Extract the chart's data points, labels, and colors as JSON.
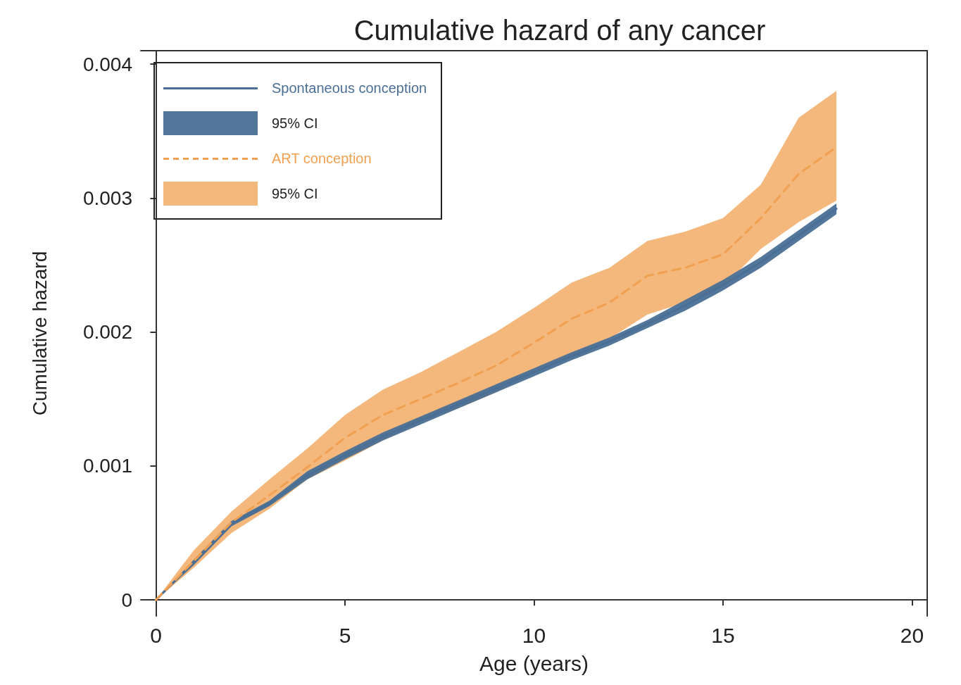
{
  "chart_data": {
    "type": "line",
    "title": "Cumulative hazard of any cancer",
    "xlabel": "Age (years)",
    "ylabel": "Cumulative hazard",
    "x": [
      0,
      1,
      2,
      3,
      4,
      5,
      6,
      7,
      8,
      9,
      10,
      11,
      12,
      13,
      14,
      15,
      16,
      17,
      18
    ],
    "series": [
      {
        "name": "Spontaneous conception",
        "color": "#4a6f96",
        "line_style": "solid",
        "values": [
          0,
          0.00028,
          0.00057,
          0.00072,
          0.00093,
          0.00108,
          0.00122,
          0.00134,
          0.00146,
          0.00158,
          0.0017,
          0.00182,
          0.00193,
          0.00206,
          0.0022,
          0.00235,
          0.00252,
          0.00272,
          0.00292
        ],
        "lower": [
          0,
          0.00026,
          0.00055,
          0.0007,
          0.0009,
          0.00105,
          0.00119,
          0.00131,
          0.00143,
          0.00155,
          0.00167,
          0.00179,
          0.0019,
          0.00203,
          0.00216,
          0.00231,
          0.00248,
          0.00268,
          0.00288
        ],
        "upper": [
          0,
          0.0003,
          0.00059,
          0.00074,
          0.00096,
          0.00111,
          0.00125,
          0.00137,
          0.00149,
          0.00161,
          0.00173,
          0.00185,
          0.00196,
          0.00209,
          0.00224,
          0.00239,
          0.00256,
          0.00276,
          0.00296
        ]
      },
      {
        "name": "ART conception",
        "color": "#f0a050",
        "line_style": "dashed",
        "values": [
          0,
          0.00029,
          0.00058,
          0.00078,
          0.00099,
          0.00121,
          0.00138,
          0.0015,
          0.00162,
          0.00175,
          0.00192,
          0.0021,
          0.00222,
          0.00242,
          0.00248,
          0.00258,
          0.00285,
          0.00318,
          0.00338
        ],
        "lower": [
          0,
          0.00024,
          0.0005,
          0.00068,
          0.0009,
          0.00104,
          0.00119,
          0.00133,
          0.00143,
          0.00155,
          0.0017,
          0.00182,
          0.00195,
          0.00213,
          0.00222,
          0.00234,
          0.00262,
          0.00282,
          0.00298
        ],
        "upper": [
          0,
          0.00037,
          0.00066,
          0.0009,
          0.00113,
          0.00138,
          0.00157,
          0.0017,
          0.00185,
          0.002,
          0.00218,
          0.00237,
          0.00248,
          0.00268,
          0.00275,
          0.00285,
          0.0031,
          0.0036,
          0.0038
        ]
      }
    ],
    "annotations": [
      "95% CI",
      "95% CI"
    ],
    "xlim": [
      -0.4,
      20.4
    ],
    "xticks": [
      0,
      5,
      10,
      15,
      20
    ],
    "ylim": [
      -0.00012,
      0.0041
    ],
    "yticks": [
      0,
      0.001,
      0.002,
      0.003,
      0.004
    ],
    "grid": false,
    "legend": "top left",
    "marker": "none"
  }
}
